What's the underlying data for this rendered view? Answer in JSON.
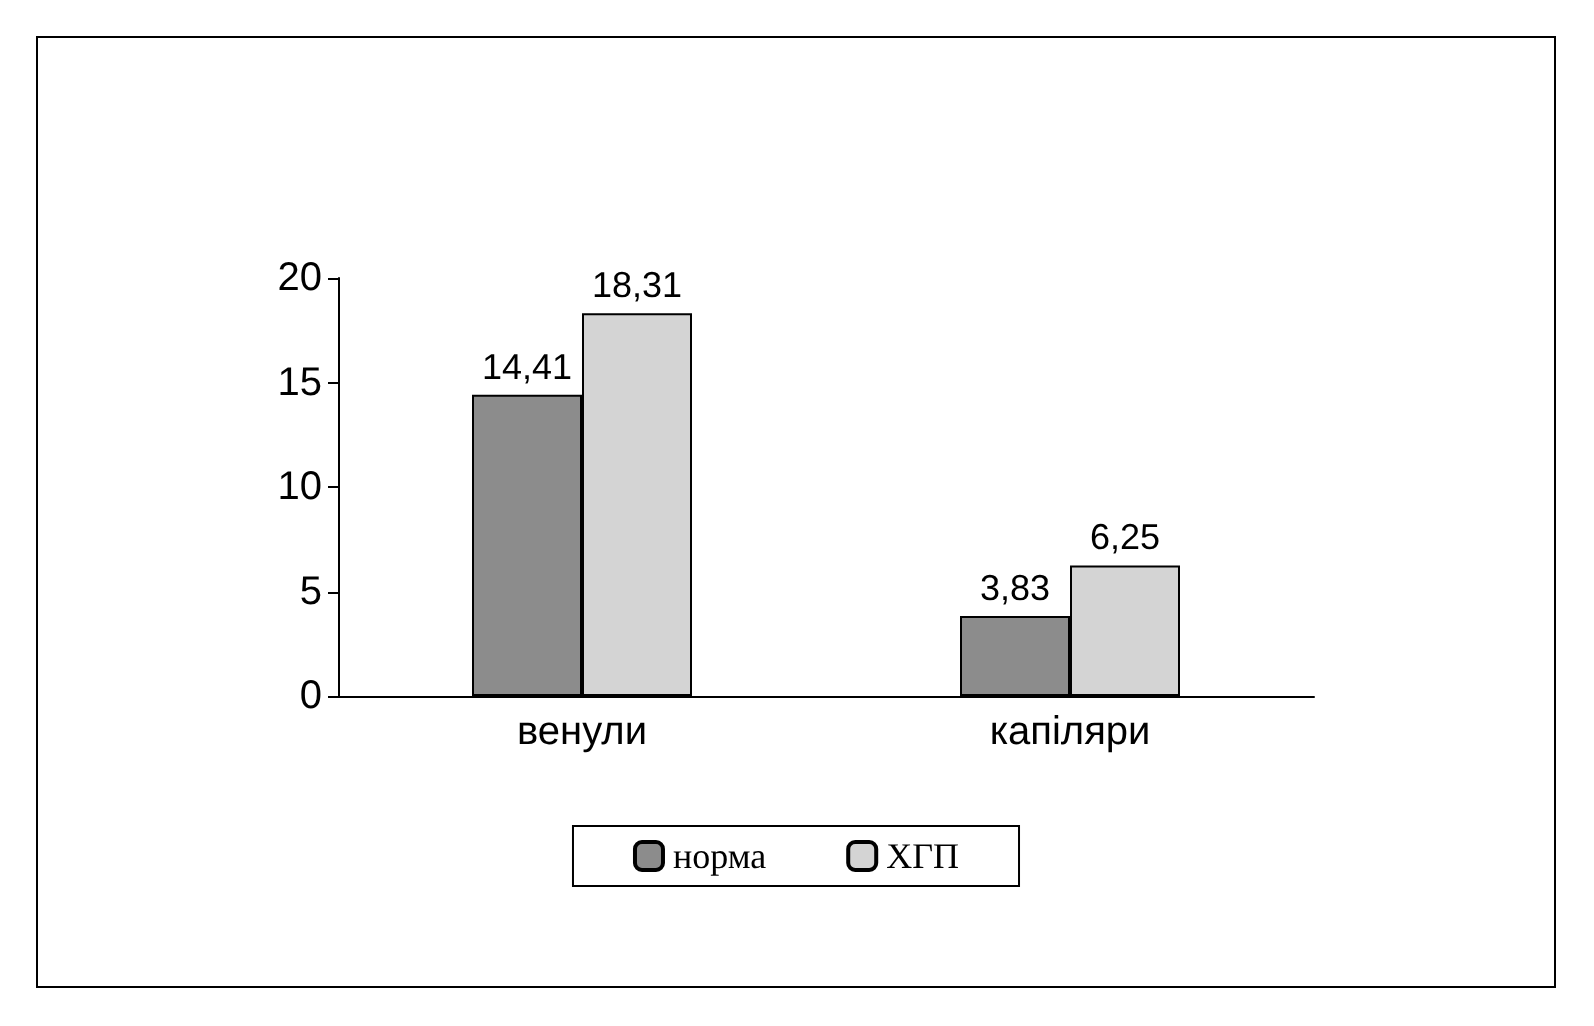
{
  "chart_data": {
    "type": "bar",
    "categories": [
      "венули",
      "капіляри"
    ],
    "series": [
      {
        "name": "норма",
        "color": "#8c8c8c",
        "values": [
          14.41,
          3.83
        ],
        "value_labels": [
          "14,41",
          "3,83"
        ]
      },
      {
        "name": "ХГП",
        "color": "#d4d4d4",
        "values": [
          18.31,
          6.25
        ],
        "value_labels": [
          "18,31",
          "6,25"
        ]
      }
    ],
    "ylim": [
      0,
      20
    ],
    "yticks": [
      0,
      5,
      10,
      15,
      20
    ],
    "grid": false,
    "legend": "bottom"
  }
}
